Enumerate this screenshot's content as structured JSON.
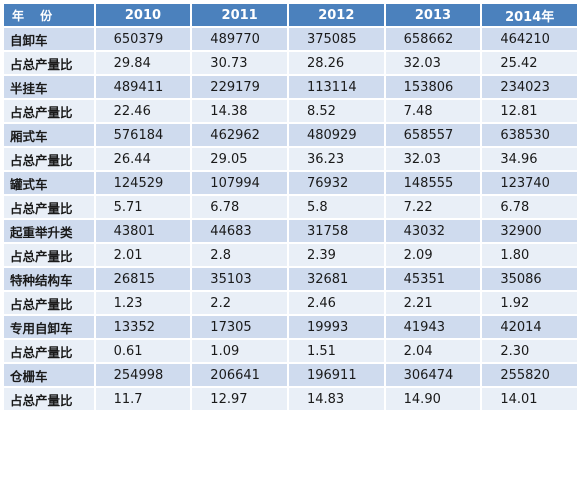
{
  "header": [
    "年 份",
    "2010",
    "2011",
    "2012",
    "2013",
    "2014年"
  ],
  "rows": [
    {
      "label": "自卸车",
      "values": [
        "650379",
        "489770",
        "375085",
        "658662",
        "464210"
      ]
    },
    {
      "label": "占总产量比",
      "values": [
        "29.84",
        "30.73",
        "28.26",
        "32.03",
        "25.42"
      ]
    },
    {
      "label": "半挂车",
      "values": [
        "489411",
        "229179",
        "113114",
        "153806",
        "234023"
      ]
    },
    {
      "label": "占总产量比",
      "values": [
        "22.46",
        "14.38",
        "8.52",
        "7.48",
        "12.81"
      ]
    },
    {
      "label": "厢式车",
      "values": [
        "576184",
        "462962",
        "480929",
        "658557",
        "638530"
      ]
    },
    {
      "label": "占总产量比",
      "values": [
        "26.44",
        "29.05",
        "36.23",
        "32.03",
        "34.96"
      ]
    },
    {
      "label": "罐式车",
      "values": [
        "124529",
        "107994",
        "76932",
        "148555",
        "123740"
      ]
    },
    {
      "label": "占总产量比",
      "values": [
        "5.71",
        "6.78",
        "5.8",
        "7.22",
        "6.78"
      ]
    },
    {
      "label": "起重举升类",
      "values": [
        "43801",
        "44683",
        "31758",
        "43032",
        "32900"
      ]
    },
    {
      "label": "占总产量比",
      "values": [
        "2.01",
        "2.8",
        "2.39",
        "2.09",
        "1.80"
      ]
    },
    {
      "label": "特种结构车",
      "values": [
        "26815",
        "35103",
        "32681",
        "45351",
        "35086"
      ]
    },
    {
      "label": "占总产量比",
      "values": [
        "1.23",
        "2.2",
        "2.46",
        "2.21",
        "1.92"
      ]
    },
    {
      "label": "专用自卸车",
      "values": [
        "13352",
        "17305",
        "19993",
        "41943",
        "42014"
      ]
    },
    {
      "label": "占总产量比",
      "values": [
        "0.61",
        "1.09",
        "1.51",
        "2.04",
        "2.30"
      ]
    },
    {
      "label": "仓栅车",
      "values": [
        "254998",
        "206641",
        "196911",
        "306474",
        "255820"
      ]
    },
    {
      "label": "占总产量比",
      "values": [
        "11.7",
        "12.97",
        "14.83",
        "14.90",
        "14.01"
      ]
    }
  ]
}
